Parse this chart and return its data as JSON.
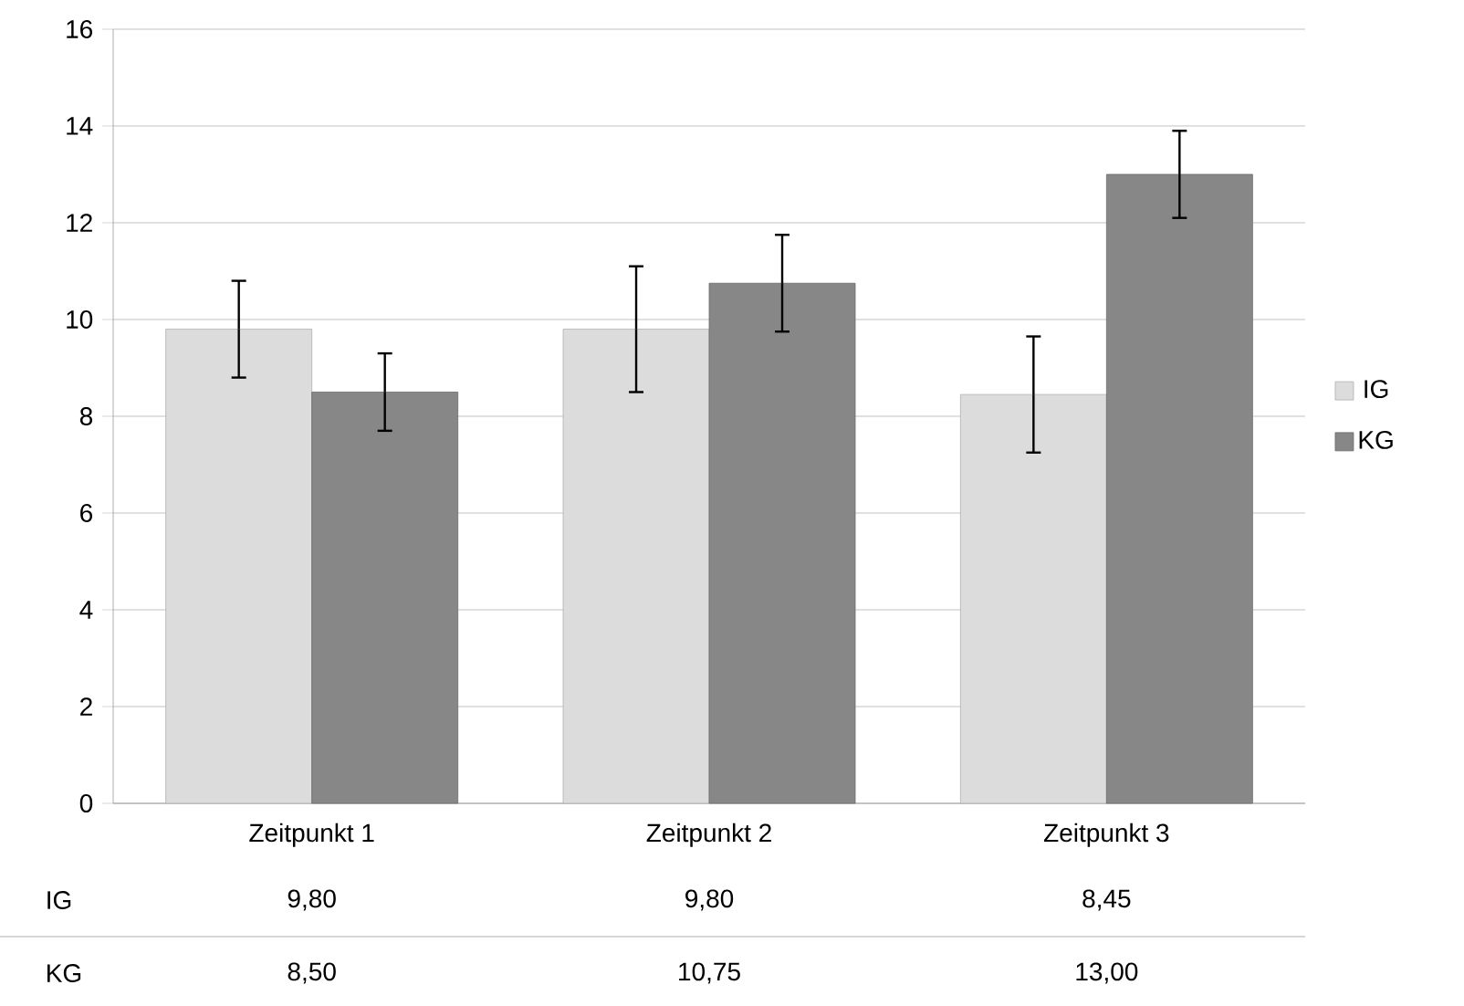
{
  "chart_data": {
    "type": "bar",
    "categories": [
      "Zeitpunkt 1",
      "Zeitpunkt 2",
      "Zeitpunkt 3"
    ],
    "series": [
      {
        "name": "IG",
        "color": "#dcdcdc",
        "values": [
          9.8,
          9.8,
          8.45
        ],
        "errors": [
          1.0,
          1.3,
          1.2
        ],
        "value_labels": [
          "9,80",
          "9,80",
          "8,45"
        ]
      },
      {
        "name": "KG",
        "color": "#878787",
        "values": [
          8.5,
          10.75,
          13.0
        ],
        "errors": [
          0.8,
          1.0,
          0.9
        ],
        "value_labels": [
          "8,50",
          "10,75",
          "13,00"
        ]
      }
    ],
    "ylim": [
      0,
      16
    ],
    "yticks": [
      0,
      2,
      4,
      6,
      8,
      10,
      12,
      14,
      16
    ],
    "grid": "y",
    "legend": "right"
  }
}
